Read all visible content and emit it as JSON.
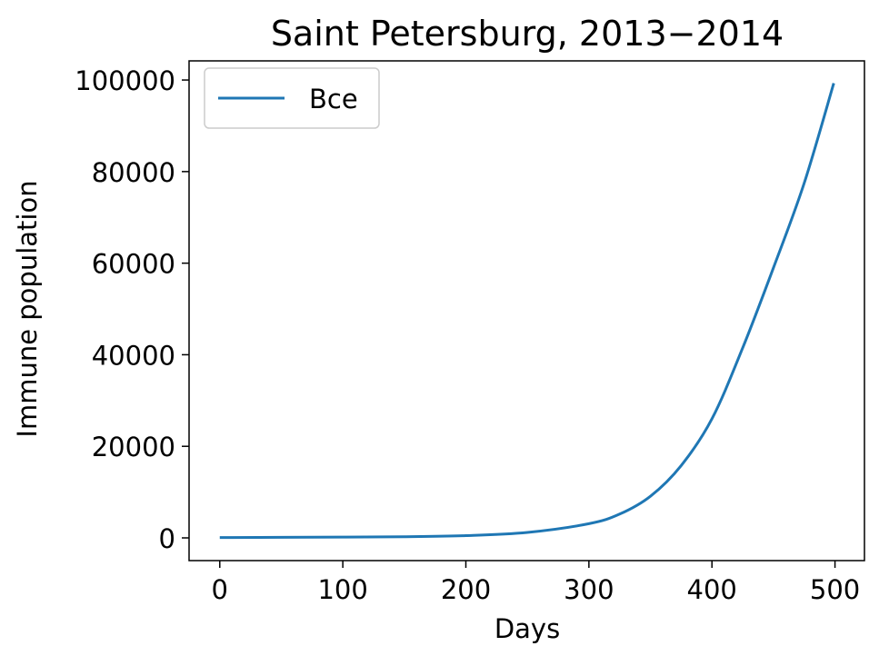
{
  "chart_data": {
    "type": "line",
    "title": "Saint Petersburg, 2013−2014",
    "xlabel": "Days",
    "ylabel": "Immune population",
    "xlim": [
      -24.95,
      523.95
    ],
    "ylim": [
      -4960,
      104180
    ],
    "xticks": [
      0,
      100,
      200,
      300,
      400,
      500
    ],
    "yticks": [
      0,
      20000,
      40000,
      60000,
      80000,
      100000
    ],
    "grid": false,
    "legend_position": "upper-left",
    "series": [
      {
        "name": "Все",
        "color": "#1f77b4",
        "x": [
          0,
          50,
          100,
          150,
          200,
          250,
          300,
          325,
          350,
          375,
          400,
          425,
          450,
          475,
          499
        ],
        "y": [
          80,
          120,
          180,
          260,
          500,
          1200,
          3100,
          5200,
          9100,
          15800,
          26000,
          41500,
          59000,
          77500,
          99300
        ]
      }
    ]
  }
}
